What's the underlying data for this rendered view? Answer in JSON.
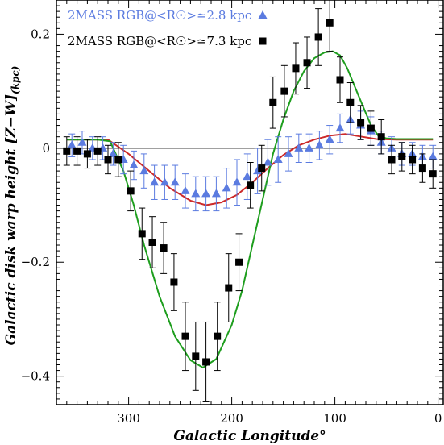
{
  "chart_data": {
    "type": "scatter",
    "xlabel": "Galactic Longitude°",
    "ylabel": "Galactic disk warp height [Z−W]",
    "ylabel_sub": "(kpc)",
    "xlim": [
      370,
      -5
    ],
    "ylim": [
      -0.45,
      0.26
    ],
    "x_ticks": [
      300,
      200,
      100,
      0
    ],
    "y_ticks": [
      -0.4,
      -0.2,
      0,
      0.2
    ],
    "x_tick_labels": [
      "300",
      "200",
      "100",
      "0"
    ],
    "y_tick_labels": [
      "−0.4",
      "−0.2",
      "0",
      "0.2"
    ],
    "zero_line": true,
    "legend_position": "top-left",
    "series": [
      {
        "name": "2MASS RGB@<R☉>≃2.8 kpc",
        "marker": "triangle",
        "color": "#5b7be0",
        "points": [
          {
            "x": 355,
            "y": 0.005,
            "err": 0.02
          },
          {
            "x": 345,
            "y": 0.01,
            "err": 0.02
          },
          {
            "x": 335,
            "y": 0.0,
            "err": 0.02
          },
          {
            "x": 325,
            "y": 0.0,
            "err": 0.02
          },
          {
            "x": 315,
            "y": -0.01,
            "err": 0.02
          },
          {
            "x": 305,
            "y": -0.02,
            "err": 0.025
          },
          {
            "x": 295,
            "y": -0.03,
            "err": 0.025
          },
          {
            "x": 285,
            "y": -0.04,
            "err": 0.03
          },
          {
            "x": 275,
            "y": -0.06,
            "err": 0.03
          },
          {
            "x": 265,
            "y": -0.06,
            "err": 0.03
          },
          {
            "x": 255,
            "y": -0.06,
            "err": 0.03
          },
          {
            "x": 245,
            "y": -0.075,
            "err": 0.03
          },
          {
            "x": 235,
            "y": -0.08,
            "err": 0.03
          },
          {
            "x": 225,
            "y": -0.08,
            "err": 0.03
          },
          {
            "x": 215,
            "y": -0.08,
            "err": 0.03
          },
          {
            "x": 205,
            "y": -0.07,
            "err": 0.035
          },
          {
            "x": 195,
            "y": -0.06,
            "err": 0.04
          },
          {
            "x": 185,
            "y": -0.05,
            "err": 0.04
          },
          {
            "x": 175,
            "y": -0.04,
            "err": 0.04
          },
          {
            "x": 165,
            "y": -0.025,
            "err": 0.04
          },
          {
            "x": 155,
            "y": -0.02,
            "err": 0.04
          },
          {
            "x": 145,
            "y": -0.01,
            "err": 0.03
          },
          {
            "x": 135,
            "y": 0.0,
            "err": 0.025
          },
          {
            "x": 125,
            "y": 0.0,
            "err": 0.025
          },
          {
            "x": 115,
            "y": 0.005,
            "err": 0.025
          },
          {
            "x": 105,
            "y": 0.015,
            "err": 0.025
          },
          {
            "x": 95,
            "y": 0.035,
            "err": 0.025
          },
          {
            "x": 85,
            "y": 0.05,
            "err": 0.025
          },
          {
            "x": 75,
            "y": 0.04,
            "err": 0.025
          },
          {
            "x": 65,
            "y": 0.03,
            "err": 0.025
          },
          {
            "x": 55,
            "y": 0.01,
            "err": 0.02
          },
          {
            "x": 45,
            "y": 0.0,
            "err": 0.02
          },
          {
            "x": 35,
            "y": -0.01,
            "err": 0.02
          },
          {
            "x": 25,
            "y": -0.01,
            "err": 0.02
          },
          {
            "x": 15,
            "y": -0.015,
            "err": 0.02
          },
          {
            "x": 5,
            "y": -0.015,
            "err": 0.02
          }
        ]
      },
      {
        "name": "2MASS RGB@<R☉>≃7.3 kpc",
        "marker": "square",
        "color": "#000000",
        "points": [
          {
            "x": 360,
            "y": -0.005,
            "err": 0.025
          },
          {
            "x": 350,
            "y": -0.005,
            "err": 0.025
          },
          {
            "x": 340,
            "y": -0.01,
            "err": 0.025
          },
          {
            "x": 330,
            "y": -0.005,
            "err": 0.025
          },
          {
            "x": 320,
            "y": -0.02,
            "err": 0.025
          },
          {
            "x": 310,
            "y": -0.02,
            "err": 0.03
          },
          {
            "x": 298,
            "y": -0.075,
            "err": 0.035
          },
          {
            "x": 287,
            "y": -0.15,
            "err": 0.045
          },
          {
            "x": 277,
            "y": -0.165,
            "err": 0.045
          },
          {
            "x": 266,
            "y": -0.175,
            "err": 0.045
          },
          {
            "x": 256,
            "y": -0.235,
            "err": 0.05
          },
          {
            "x": 245,
            "y": -0.33,
            "err": 0.06
          },
          {
            "x": 235,
            "y": -0.365,
            "err": 0.06
          },
          {
            "x": 225,
            "y": -0.375,
            "err": 0.07
          },
          {
            "x": 214,
            "y": -0.33,
            "err": 0.06
          },
          {
            "x": 203,
            "y": -0.245,
            "err": 0.06
          },
          {
            "x": 193,
            "y": -0.2,
            "err": 0.05
          },
          {
            "x": 182,
            "y": -0.065,
            "err": 0.04
          },
          {
            "x": 171,
            "y": -0.035,
            "err": 0.04
          },
          {
            "x": 160,
            "y": 0.08,
            "err": 0.045
          },
          {
            "x": 149,
            "y": 0.1,
            "err": 0.045
          },
          {
            "x": 138,
            "y": 0.14,
            "err": 0.045
          },
          {
            "x": 127,
            "y": 0.15,
            "err": 0.045
          },
          {
            "x": 116,
            "y": 0.195,
            "err": 0.05
          },
          {
            "x": 105,
            "y": 0.22,
            "err": 0.05
          },
          {
            "x": 95,
            "y": 0.12,
            "err": 0.04
          },
          {
            "x": 85,
            "y": 0.08,
            "err": 0.035
          },
          {
            "x": 75,
            "y": 0.045,
            "err": 0.03
          },
          {
            "x": 65,
            "y": 0.035,
            "err": 0.03
          },
          {
            "x": 55,
            "y": 0.02,
            "err": 0.03
          },
          {
            "x": 45,
            "y": -0.02,
            "err": 0.025
          },
          {
            "x": 35,
            "y": -0.015,
            "err": 0.025
          },
          {
            "x": 25,
            "y": -0.02,
            "err": 0.025
          },
          {
            "x": 15,
            "y": -0.035,
            "err": 0.025
          },
          {
            "x": 5,
            "y": -0.045,
            "err": 0.025
          }
        ]
      }
    ],
    "model_curves": [
      {
        "color": "#cc2a2a",
        "x": [
          360,
          320,
          300,
          280,
          260,
          240,
          225,
          210,
          195,
          180,
          165,
          150,
          135,
          120,
          105,
          90,
          80,
          60,
          40,
          20,
          5
        ],
        "y": [
          0.015,
          0.015,
          -0.01,
          -0.04,
          -0.07,
          -0.092,
          -0.1,
          -0.095,
          -0.082,
          -0.06,
          -0.035,
          -0.012,
          0.005,
          0.015,
          0.022,
          0.025,
          0.022,
          0.016,
          0.015,
          0.015,
          0.015
        ]
      },
      {
        "color": "#1e9e1e",
        "x": [
          360,
          330,
          318,
          305,
          295,
          285,
          270,
          255,
          240,
          228,
          215,
          200,
          190,
          180,
          170,
          160,
          150,
          140,
          130,
          120,
          110,
          102,
          95,
          88,
          80,
          72,
          65,
          58,
          50,
          40,
          20,
          5
        ],
        "y": [
          0.015,
          0.015,
          0.012,
          -0.04,
          -0.1,
          -0.17,
          -0.26,
          -0.33,
          -0.372,
          -0.385,
          -0.37,
          -0.31,
          -0.25,
          -0.17,
          -0.09,
          -0.01,
          0.05,
          0.1,
          0.135,
          0.158,
          0.168,
          0.17,
          0.163,
          0.14,
          0.105,
          0.07,
          0.04,
          0.022,
          0.017,
          0.016,
          0.016,
          0.016
        ]
      }
    ]
  }
}
